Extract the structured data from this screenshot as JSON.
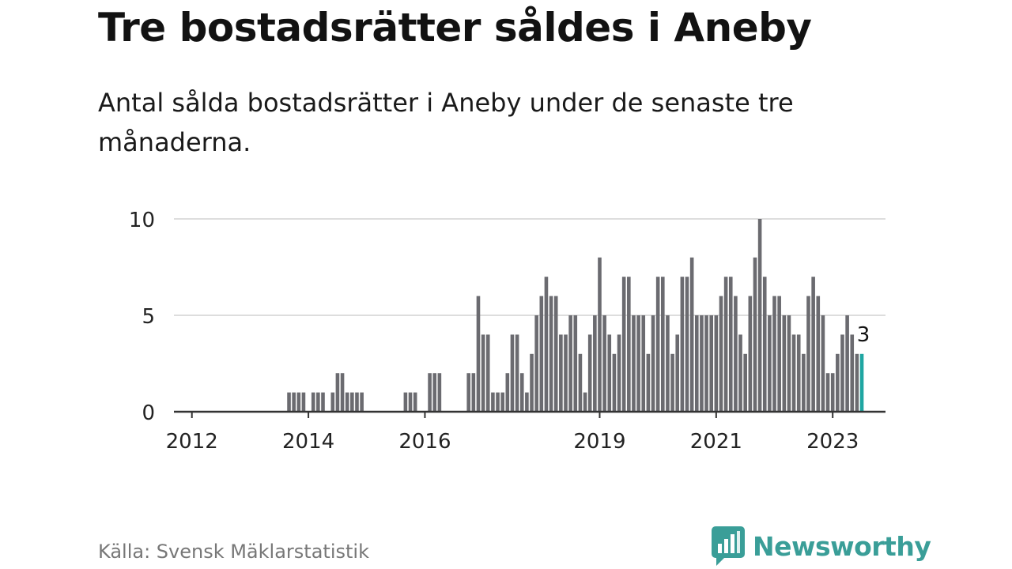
{
  "title": "Tre bostadsrätter såldes i Aneby",
  "subtitle": "Antal sålda bostadsrätter i Aneby under de senaste tre månaderna.",
  "source": "Källa: Svensk Mäklarstatistik",
  "brand": "Newsworthy",
  "colors": {
    "bar": "#6b6b70",
    "highlight": "#1fa6a2",
    "grid": "#dddddd",
    "axis": "#333333",
    "brand": "#3a9e98"
  },
  "chart_data": {
    "type": "bar",
    "title": "Tre bostadsrätter såldes i Aneby",
    "xlabel": "",
    "ylabel": "",
    "ylim": [
      0,
      10
    ],
    "yticks": [
      0,
      5,
      10
    ],
    "x_tick_labels": [
      "2012",
      "2014",
      "2016",
      "2019",
      "2021",
      "2023"
    ],
    "start": {
      "year": 2011,
      "month": 10
    },
    "highlight_label": "3",
    "values": [
      0,
      0,
      0,
      0,
      0,
      0,
      0,
      0,
      0,
      0,
      0,
      0,
      0,
      0,
      0,
      0,
      0,
      0,
      0,
      0,
      0,
      0,
      0,
      1,
      1,
      1,
      1,
      0,
      1,
      1,
      1,
      0,
      1,
      2,
      2,
      1,
      1,
      1,
      1,
      0,
      0,
      0,
      0,
      0,
      0,
      0,
      0,
      1,
      1,
      1,
      0,
      0,
      2,
      2,
      2,
      0,
      0,
      0,
      0,
      0,
      2,
      2,
      6,
      4,
      4,
      1,
      1,
      1,
      2,
      4,
      4,
      2,
      1,
      3,
      5,
      6,
      7,
      6,
      6,
      4,
      4,
      5,
      5,
      3,
      1,
      4,
      5,
      8,
      5,
      4,
      3,
      4,
      7,
      7,
      5,
      5,
      5,
      3,
      5,
      7,
      7,
      5,
      3,
      4,
      7,
      7,
      8,
      5,
      5,
      5,
      5,
      5,
      6,
      7,
      7,
      6,
      4,
      3,
      6,
      8,
      10,
      7,
      5,
      6,
      6,
      5,
      5,
      4,
      4,
      3,
      6,
      7,
      6,
      5,
      2,
      2,
      3,
      4,
      5,
      4,
      3,
      3
    ]
  }
}
